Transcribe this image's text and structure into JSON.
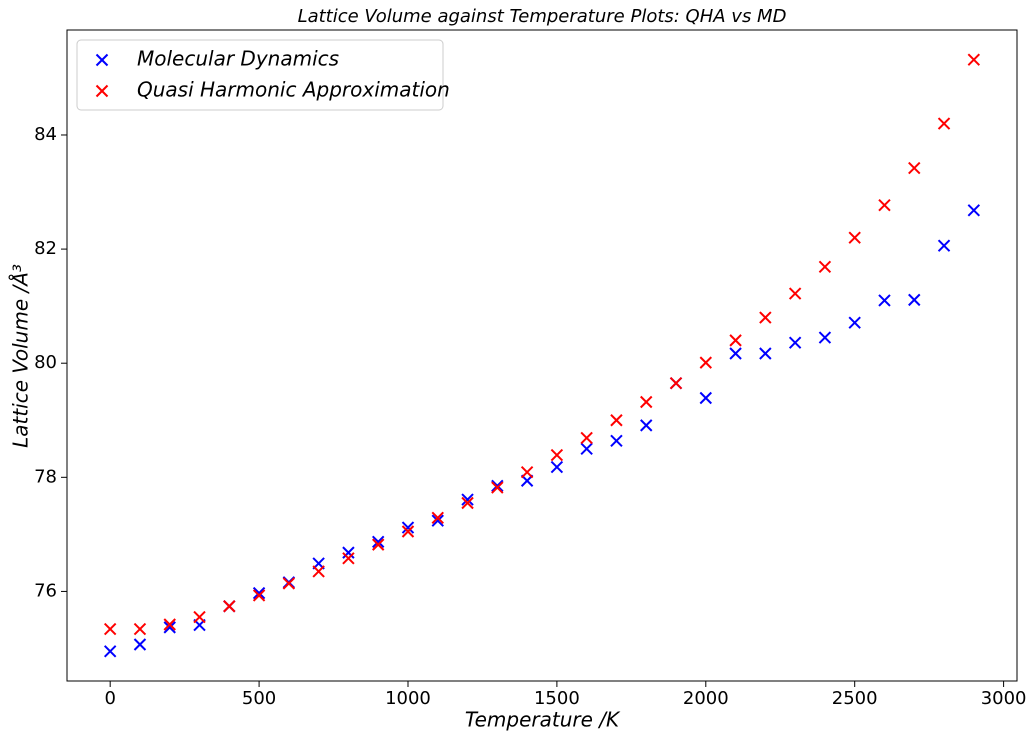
{
  "chart_data": {
    "type": "scatter",
    "title": "Lattice Volume against Temperature Plots: QHA vs MD",
    "xlabel": "Temperature /K",
    "ylabel": "Lattice Volume /Å³",
    "x": [
      0,
      100,
      200,
      300,
      400,
      500,
      600,
      700,
      800,
      900,
      1000,
      1100,
      1200,
      1300,
      1400,
      1500,
      1600,
      1700,
      1800,
      1900,
      2000,
      2100,
      2200,
      2300,
      2400,
      2500,
      2600,
      2700,
      2800,
      2900
    ],
    "series": [
      {
        "name": "Molecular Dynamics",
        "color": "#0000ff",
        "marker": "x",
        "values": [
          74.95,
          75.07,
          75.37,
          75.41,
          75.74,
          75.97,
          76.16,
          76.49,
          76.68,
          76.87,
          77.12,
          77.24,
          77.61,
          77.85,
          77.94,
          78.18,
          78.5,
          78.64,
          78.91,
          79.65,
          79.39,
          80.17,
          80.17,
          80.36,
          80.45,
          80.71,
          81.1,
          81.11,
          82.06,
          82.68
        ]
      },
      {
        "name": "Quasi Harmonic Approximation",
        "color": "#ff0000",
        "marker": "x",
        "values": [
          75.34,
          75.34,
          75.42,
          75.55,
          75.74,
          75.93,
          76.14,
          76.35,
          76.58,
          76.82,
          77.05,
          77.29,
          77.55,
          77.82,
          78.09,
          78.39,
          78.69,
          79.0,
          79.32,
          79.65,
          80.01,
          80.4,
          80.8,
          81.22,
          81.69,
          82.2,
          82.77,
          83.42,
          84.2,
          85.32
        ]
      }
    ],
    "xlim": [
      -145,
      3045
    ],
    "xticks": [
      0,
      500,
      1000,
      1500,
      2000,
      2500,
      3000
    ],
    "ylim": [
      74.43,
      85.84
    ],
    "yticks": [
      76,
      78,
      80,
      82,
      84
    ],
    "legend": "upper left",
    "grid": false
  }
}
